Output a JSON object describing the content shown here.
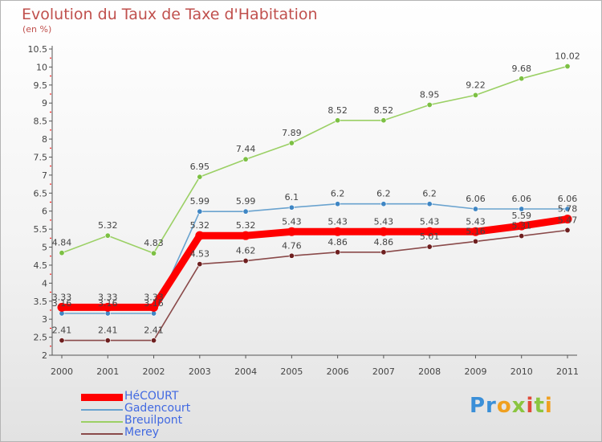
{
  "chart_data": {
    "type": "line",
    "title": "Evolution du Taux de Taxe d'Habitation",
    "subtitle": "(en %)",
    "x": [
      "2000",
      "2001",
      "2002",
      "2003",
      "2004",
      "2005",
      "2006",
      "2007",
      "2008",
      "2009",
      "2010",
      "2011"
    ],
    "yticks": [
      "2",
      "2.5",
      "3",
      "3.5",
      "4",
      "4.5",
      "5",
      "5.5",
      "6",
      "6.5",
      "7",
      "7.5",
      "8",
      "8.5",
      "9",
      "9.5",
      "10",
      "10.5"
    ],
    "ylim": [
      2,
      10.5
    ],
    "grid": false,
    "legend_position": "bottom-left",
    "series": [
      {
        "name": "Breuilpont",
        "color": "#9bd065",
        "point_color": "#7cc043",
        "values": [
          4.84,
          5.32,
          4.83,
          6.95,
          7.44,
          7.89,
          8.52,
          8.52,
          8.95,
          9.22,
          9.68,
          10.02
        ],
        "labels": [
          "4.84",
          "5.32",
          "4.83",
          "6.95",
          "7.44",
          "7.89",
          "8.52",
          "8.52",
          "8.95",
          "9.22",
          "9.68",
          "10.02"
        ]
      },
      {
        "name": "Gadencourt",
        "color": "#6aa3cf",
        "point_color": "#3f86c4",
        "values": [
          3.16,
          3.16,
          3.16,
          5.99,
          5.99,
          6.1,
          6.2,
          6.2,
          6.2,
          6.06,
          6.06,
          6.06
        ],
        "labels": [
          "3.16",
          "3.16",
          "3.16",
          "5.99",
          "5.99",
          "6.1",
          "6.2",
          "6.2",
          "6.2",
          "6.06",
          "6.06",
          "6.06"
        ]
      },
      {
        "name": "Merey",
        "color": "#8a4a4a",
        "point_color": "#6e1f1f",
        "values": [
          2.41,
          2.41,
          2.41,
          4.53,
          4.62,
          4.76,
          4.86,
          4.86,
          5.01,
          5.16,
          5.31,
          5.47
        ],
        "labels": [
          "2.41",
          "2.41",
          "2.41",
          "4.53",
          "4.62",
          "4.76",
          "4.86",
          "4.86",
          "5.01",
          "5.16",
          "5.31",
          "5.47"
        ]
      },
      {
        "name": "HéCOURT",
        "color": "#ff0000",
        "point_color": "#ff0000",
        "values": [
          3.33,
          3.33,
          3.33,
          5.32,
          5.32,
          5.43,
          5.43,
          5.43,
          5.43,
          5.43,
          5.59,
          5.78
        ],
        "labels": [
          "3.33",
          "3.33",
          "3.33",
          "5.32",
          "5.32",
          "5.43",
          "5.43",
          "5.43",
          "5.43",
          "5.43",
          "5.59",
          "5.78"
        ]
      }
    ],
    "legend": [
      "HéCOURT",
      "Gadencourt",
      "Breuilpont",
      "Merey"
    ]
  },
  "brand": {
    "name": "Proxiti",
    "colors": [
      "#3a8fd8",
      "#f0a020",
      "#8bc540",
      "#e04a3a"
    ]
  }
}
